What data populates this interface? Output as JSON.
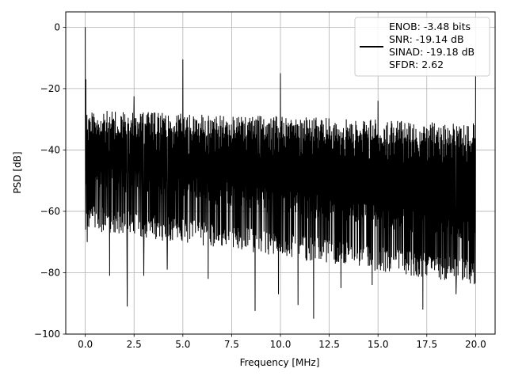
{
  "chart_data": {
    "type": "line",
    "xlabel": "Frequency [MHz]",
    "ylabel": "PSD [dB]",
    "xlim": [
      -1.0,
      21.0
    ],
    "ylim": [
      -100,
      5
    ],
    "x_ticks": [
      0.0,
      2.5,
      5.0,
      7.5,
      10.0,
      12.5,
      15.0,
      17.5,
      20.0
    ],
    "x_tick_labels": [
      "0.0",
      "2.5",
      "5.0",
      "7.5",
      "10.0",
      "12.5",
      "15.0",
      "17.5",
      "20.0"
    ],
    "y_ticks": [
      0,
      -20,
      -40,
      -60,
      -80,
      -100
    ],
    "y_tick_labels": [
      "0",
      "−20",
      "−40",
      "−60",
      "−80",
      "−100"
    ],
    "grid": true,
    "line_color": "#000000",
    "legend": {
      "placement": "top-right",
      "lines": [
        "ENOB: -3.48 bits",
        "SNR: -19.14 dB",
        "SINAD: -19.18 dB",
        "SFDR: 2.62"
      ]
    },
    "series": [
      {
        "x_range": [
          0.0,
          20.0
        ],
        "noise_top_db": [
          -27,
          -31
        ],
        "noise_floor_db": [
          -58,
          -76
        ],
        "spikes": [
          {
            "x": 0.0,
            "y": 0.0
          },
          {
            "x": 0.03,
            "y": -17
          },
          {
            "x": 1.25,
            "y": -23
          },
          {
            "x": 2.5,
            "y": -22.5
          },
          {
            "x": 5.0,
            "y": -10.5
          },
          {
            "x": 10.0,
            "y": -15
          },
          {
            "x": 15.0,
            "y": -24
          },
          {
            "x": 20.0,
            "y": -16
          }
        ],
        "dips": [
          {
            "x": 0.1,
            "y": -70
          },
          {
            "x": 1.25,
            "y": -81
          },
          {
            "x": 2.15,
            "y": -91
          },
          {
            "x": 3.0,
            "y": -81
          },
          {
            "x": 4.2,
            "y": -79
          },
          {
            "x": 6.3,
            "y": -82
          },
          {
            "x": 8.7,
            "y": -92.5
          },
          {
            "x": 9.9,
            "y": -87
          },
          {
            "x": 10.9,
            "y": -90.5
          },
          {
            "x": 11.7,
            "y": -95
          },
          {
            "x": 13.1,
            "y": -85
          },
          {
            "x": 14.7,
            "y": -84
          },
          {
            "x": 17.3,
            "y": -92
          },
          {
            "x": 19.0,
            "y": -87
          }
        ]
      }
    ]
  }
}
